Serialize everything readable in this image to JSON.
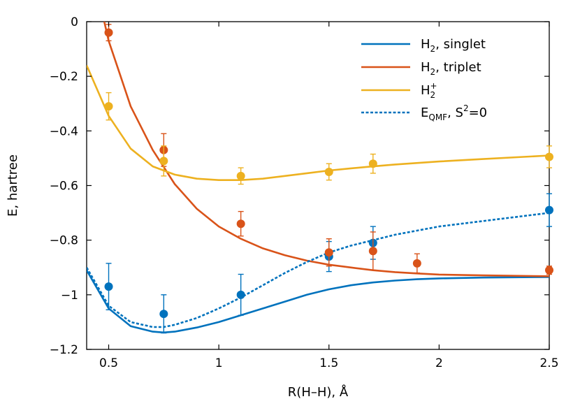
{
  "chart_data": {
    "type": "line",
    "title": "",
    "xlabel": "R(H–H), Å",
    "ylabel": "E, hartree",
    "xlim": [
      0.4,
      2.5
    ],
    "ylim": [
      -1.2,
      0
    ],
    "xticks": [
      0.5,
      1,
      1.5,
      2,
      2.5
    ],
    "xtick_labels": [
      "0.5",
      "1",
      "1.5",
      "2",
      "2.5"
    ],
    "yticks": [
      0,
      -0.2,
      -0.4,
      -0.6,
      -0.8,
      -1,
      -1.2
    ],
    "ytick_labels": [
      "0",
      "−0.2",
      "−0.4",
      "−0.6",
      "−0.8",
      "−1",
      "−1.2"
    ],
    "grid": false,
    "legend_position": "top-right",
    "series": [
      {
        "key": "h2_singlet",
        "name": "H2, singlet",
        "legend_main": "H",
        "legend_sub": "2",
        "legend_rest": ", singlet",
        "color": "#0072bd",
        "style": "solid",
        "x": [
          0.4,
          0.5,
          0.6,
          0.7,
          0.75,
          0.8,
          0.9,
          1.0,
          1.1,
          1.2,
          1.3,
          1.4,
          1.5,
          1.6,
          1.7,
          1.8,
          1.9,
          2.0,
          2.2,
          2.5
        ],
        "y": [
          -0.91,
          -1.05,
          -1.115,
          -1.135,
          -1.138,
          -1.135,
          -1.12,
          -1.1,
          -1.075,
          -1.05,
          -1.025,
          -1.0,
          -0.98,
          -0.965,
          -0.955,
          -0.948,
          -0.943,
          -0.94,
          -0.937,
          -0.935
        ]
      },
      {
        "key": "h2_triplet",
        "name": "H2, triplet",
        "legend_main": "H",
        "legend_sub": "2",
        "legend_rest": ", triplet",
        "color": "#d95319",
        "style": "solid",
        "x": [
          0.48,
          0.5,
          0.55,
          0.6,
          0.7,
          0.8,
          0.9,
          1.0,
          1.1,
          1.2,
          1.3,
          1.4,
          1.5,
          1.6,
          1.7,
          1.8,
          1.9,
          2.0,
          2.2,
          2.5
        ],
        "y": [
          0.0,
          -0.07,
          -0.19,
          -0.31,
          -0.47,
          -0.595,
          -0.685,
          -0.75,
          -0.795,
          -0.83,
          -0.855,
          -0.875,
          -0.89,
          -0.9,
          -0.91,
          -0.917,
          -0.922,
          -0.926,
          -0.929,
          -0.932
        ]
      },
      {
        "key": "h2_plus",
        "name": "H2+",
        "legend_main": "H",
        "legend_sub": "2",
        "legend_sup": "+",
        "legend_rest": "",
        "color": "#edb120",
        "style": "solid",
        "x": [
          0.4,
          0.5,
          0.6,
          0.7,
          0.75,
          0.8,
          0.9,
          1.0,
          1.1,
          1.2,
          1.3,
          1.4,
          1.5,
          1.6,
          1.7,
          1.8,
          2.0,
          2.2,
          2.5
        ],
        "y": [
          -0.16,
          -0.345,
          -0.465,
          -0.53,
          -0.545,
          -0.56,
          -0.575,
          -0.58,
          -0.58,
          -0.575,
          -0.565,
          -0.555,
          -0.545,
          -0.537,
          -0.53,
          -0.523,
          -0.512,
          -0.503,
          -0.49
        ]
      },
      {
        "key": "eqmf",
        "name": "EQMF, S2=0",
        "legend_main": "E",
        "legend_sub": "QMF",
        "legend_rest": ", S",
        "legend_sup2": "2",
        "legend_tail": "=0",
        "color": "#0072bd",
        "style": "dashed",
        "x": [
          0.4,
          0.5,
          0.6,
          0.7,
          0.75,
          0.8,
          0.9,
          1.0,
          1.1,
          1.2,
          1.3,
          1.4,
          1.5,
          1.6,
          1.7,
          1.8,
          1.9,
          2.0,
          2.2,
          2.5
        ],
        "y": [
          -0.9,
          -1.04,
          -1.1,
          -1.118,
          -1.118,
          -1.11,
          -1.085,
          -1.05,
          -1.01,
          -0.965,
          -0.92,
          -0.88,
          -0.845,
          -0.82,
          -0.8,
          -0.78,
          -0.765,
          -0.75,
          -0.73,
          -0.7
        ]
      }
    ],
    "points": [
      {
        "series": "h2_singlet",
        "x": [
          0.5,
          0.75,
          1.1,
          1.5,
          1.7,
          2.5
        ],
        "y": [
          -0.97,
          -1.07,
          -1.0,
          -0.86,
          -0.81,
          -0.69
        ],
        "err": [
          0.085,
          0.07,
          0.075,
          0.055,
          0.06,
          0.06
        ]
      },
      {
        "series": "h2_triplet",
        "x": [
          0.5,
          0.75,
          1.1,
          1.5,
          1.7,
          1.9,
          2.5
        ],
        "y": [
          -0.04,
          -0.47,
          -0.74,
          -0.845,
          -0.84,
          -0.885,
          -0.91
        ],
        "err": [
          0.03,
          0.06,
          0.045,
          0.05,
          0.07,
          0.035,
          0.015
        ]
      },
      {
        "series": "h2_plus",
        "x": [
          0.5,
          0.75,
          1.1,
          1.5,
          1.7,
          2.5
        ],
        "y": [
          -0.31,
          -0.51,
          -0.565,
          -0.55,
          -0.52,
          -0.495
        ],
        "err": [
          0.05,
          0.055,
          0.03,
          0.03,
          0.035,
          0.04
        ]
      }
    ]
  }
}
